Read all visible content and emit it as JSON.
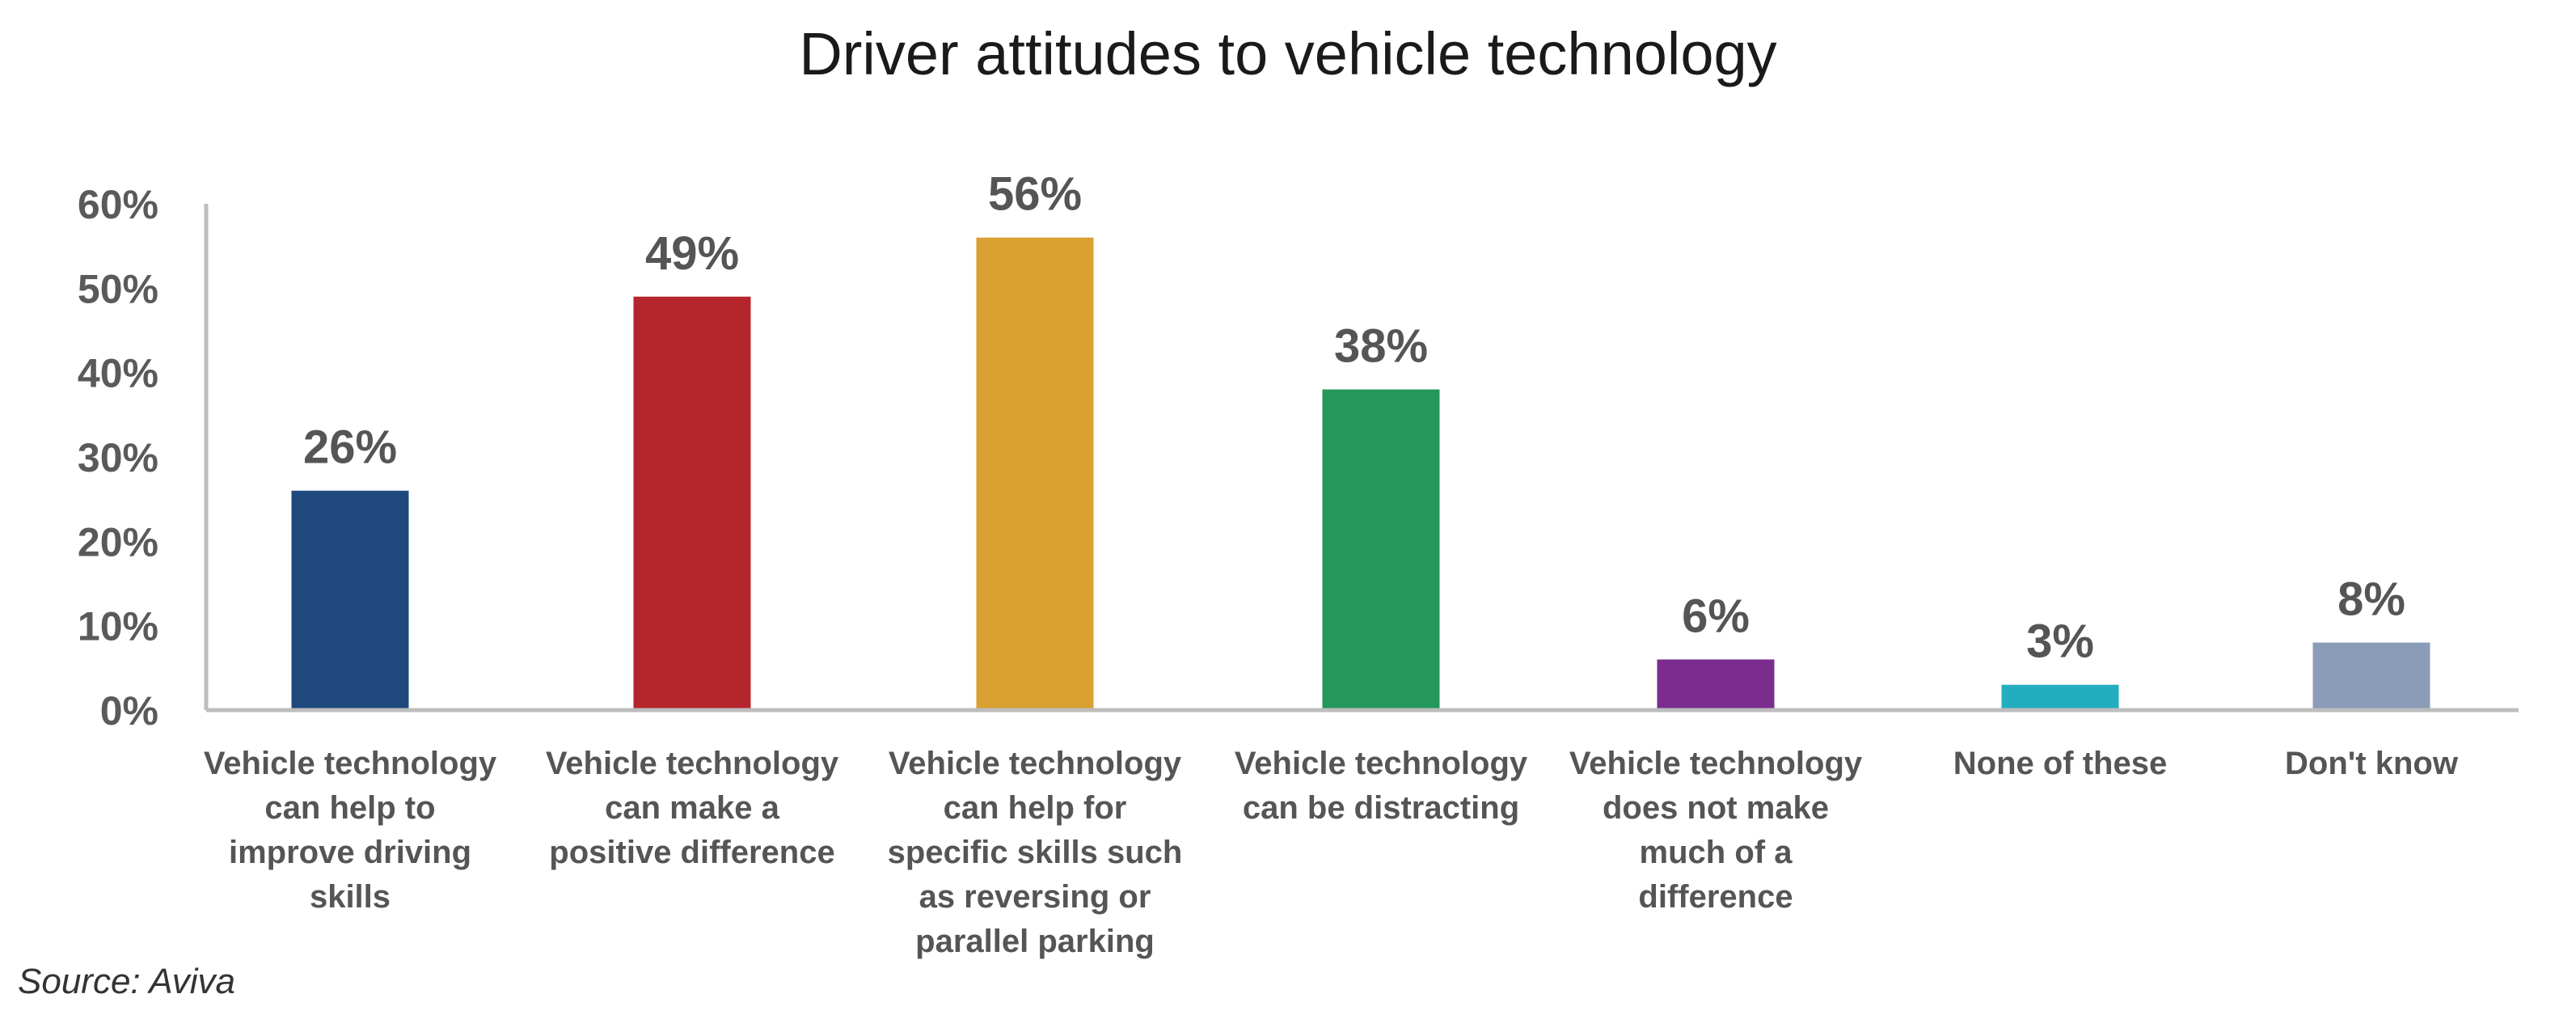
{
  "chart_data": {
    "type": "bar",
    "title": "Driver attitudes to vehicle technology",
    "xlabel": "",
    "ylabel": "",
    "ylim": [
      0,
      60
    ],
    "y_ticks": [
      "0%",
      "10%",
      "20%",
      "30%",
      "40%",
      "50%",
      "60%"
    ],
    "y_tick_values": [
      0,
      10,
      20,
      30,
      40,
      50,
      60
    ],
    "grid": false,
    "legend": "none",
    "categories": [
      [
        "Vehicle technology",
        "can help to",
        "improve driving",
        "skills"
      ],
      [
        "Vehicle technology",
        "can make a",
        "positive difference"
      ],
      [
        "Vehicle technology",
        "can help for",
        "specific skills such",
        "as reversing or",
        "parallel parking"
      ],
      [
        "Vehicle technology",
        "can be distracting"
      ],
      [
        "Vehicle technology",
        "does not make",
        "much of a",
        "difference"
      ],
      [
        "None of these"
      ],
      [
        "Don't know"
      ]
    ],
    "values": [
      26,
      49,
      56,
      38,
      6,
      3,
      8
    ],
    "data_labels": [
      "26%",
      "49%",
      "56%",
      "38%",
      "6%",
      "3%",
      "8%"
    ],
    "colors": [
      "#1f497d",
      "#b5252c",
      "#daa032",
      "#23985a",
      "#7b2d8e",
      "#22aebf",
      "#8b9cb8"
    ],
    "source": "Source: Aviva"
  }
}
